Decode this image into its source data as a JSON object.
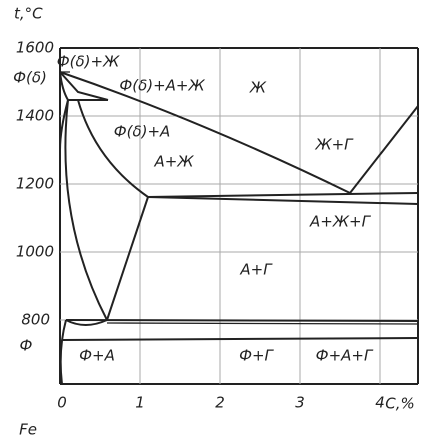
{
  "axes": {
    "y_label": "t,°C",
    "x_label": "C,%",
    "origin_label": "Fe",
    "y_ticks": [
      "1600",
      "1400",
      "1200",
      "1000",
      "800"
    ],
    "x_ticks": [
      "0",
      "1",
      "2",
      "3",
      "4"
    ]
  },
  "regions": [
    "Ф(δ)+Ж",
    "Ф(δ)",
    "Ф(δ)+А+Ж",
    "Ж",
    "Ф(δ)+А",
    "А+Ж",
    "Ж+Г",
    "А+Ж+Г",
    "А+Г",
    "Ф",
    "Ф+А",
    "Ф+Г",
    "Ф+А+Г"
  ]
}
